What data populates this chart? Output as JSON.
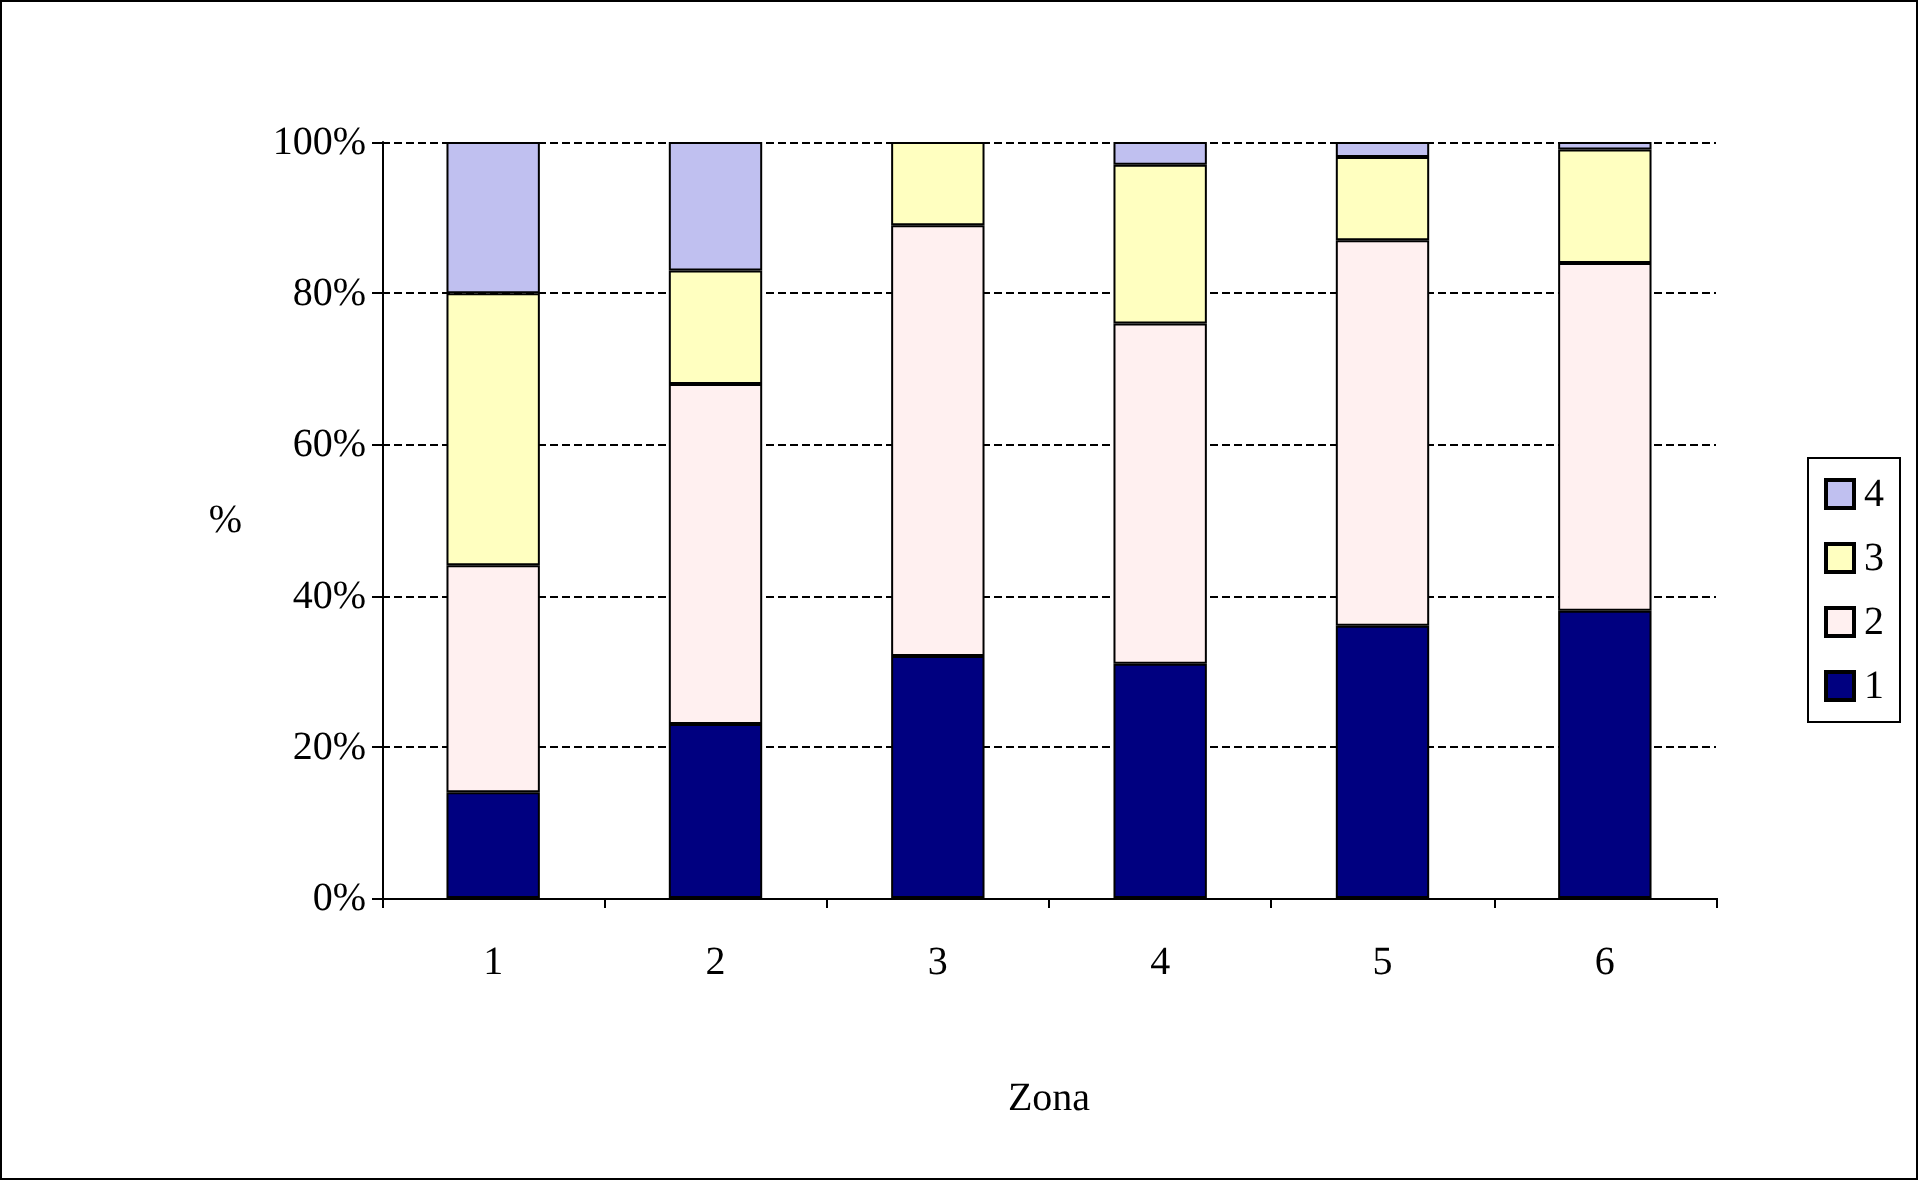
{
  "chart_data": {
    "type": "bar",
    "stacked": true,
    "xlabel": "Zona",
    "ylabel": "%",
    "categories": [
      "1",
      "2",
      "3",
      "4",
      "5",
      "6"
    ],
    "series": [
      {
        "name": "1",
        "color": "#000080",
        "values": [
          14,
          23,
          32,
          31,
          36,
          38
        ]
      },
      {
        "name": "2",
        "color": "#fff0f0",
        "values": [
          30,
          45,
          57,
          45,
          51,
          46
        ]
      },
      {
        "name": "3",
        "color": "#ffffc0",
        "values": [
          36,
          15,
          11,
          21,
          11,
          15
        ]
      },
      {
        "name": "4",
        "color": "#c0c0f0",
        "values": [
          20,
          17,
          null,
          3,
          2,
          1
        ]
      }
    ],
    "ylim": [
      0,
      100
    ],
    "yticks": [
      {
        "value": 0,
        "label": "0%"
      },
      {
        "value": 20,
        "label": "20%"
      },
      {
        "value": 40,
        "label": "40%"
      },
      {
        "value": 60,
        "label": "60%"
      },
      {
        "value": 80,
        "label": "80%"
      },
      {
        "value": 100,
        "label": "100%"
      }
    ],
    "grid": "y",
    "legend": "right",
    "line_style": "dashed"
  }
}
